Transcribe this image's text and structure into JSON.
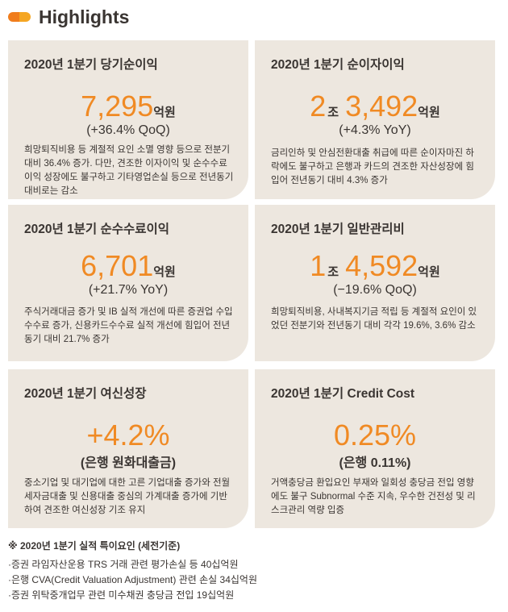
{
  "header": {
    "title": "Highlights",
    "accent": "#f08a24"
  },
  "cards": [
    {
      "title": "2020년 1분기 당기순이익",
      "value": "7,295",
      "unit": "억원",
      "change": "(+36.4% QoQ)",
      "desc": "희망퇴직비용 등 계절적 요인 소멸 영향 등으로 전분기 대비 36.4% 증가. 다만, 견조한 이자이익 및 순수수료이익 성장에도 불구하고 기타영업손실 등으로 전년동기 대비로는 감소"
    },
    {
      "title": "2020년 1분기 순이자이익",
      "value_major": "2",
      "major_unit": "조",
      "value": "3,492",
      "unit": "억원",
      "change": "(+4.3% YoY)",
      "desc": "금리인하 및 안심전환대출 취급에 따른 순이자마진 하락에도 불구하고 은행과 카드의 견조한 자산성장에 힘입어 전년동기 대비 4.3% 증가"
    },
    {
      "title": "2020년 1분기 순수수료이익",
      "value": "6,701",
      "unit": "억원",
      "change": "(+21.7% YoY)",
      "desc": "주식거래대금 증가 및 IB 실적 개선에 따른 증권업 수입수수료 증가, 신용카드수수료 실적 개선에 힘입어 전년동기 대비 21.7% 증가"
    },
    {
      "title": "2020년 1분기 일반관리비",
      "value_major": "1",
      "major_unit": "조",
      "value": "4,592",
      "unit": "억원",
      "change": "(−19.6% QoQ)",
      "desc": "희망퇴직비용, 사내복지기금 적립 등 계절적 요인이 있었던 전분기와 전년동기 대비 각각 19.6%, 3.6% 감소"
    },
    {
      "title": "2020년 1분기 여신성장",
      "value": "+4.2%",
      "change": "(은행 원화대출금)",
      "desc": "중소기업 및 대기업에 대한 고른 기업대출 증가와 전월세자금대출 및 신용대출 중심의 가계대출 증가에 기반하여 견조한 여신성장 기조 유지"
    },
    {
      "title": "2020년 1분기 Credit Cost",
      "value": "0.25%",
      "change": "(은행 0.11%)",
      "desc": "거액충당금 환입요인 부재와 일회성 충당금 전입 영향에도 불구 Subnormal 수준 지속, 우수한 건전성 및 리스크관리 역량 입증"
    }
  ],
  "notes": {
    "title": "※ 2020년 1분기 실적 특이요인 (세전기준)",
    "items": [
      "·증권 라임자산운용 TRS 거래 관련 평가손실 등 40십억원",
      "·은행 CVA(Credit Valuation Adjustment) 관련 손실 34십억원",
      "·증권 위탁중개업무 관련 미수채권 충당금 전입 19십억원"
    ]
  }
}
